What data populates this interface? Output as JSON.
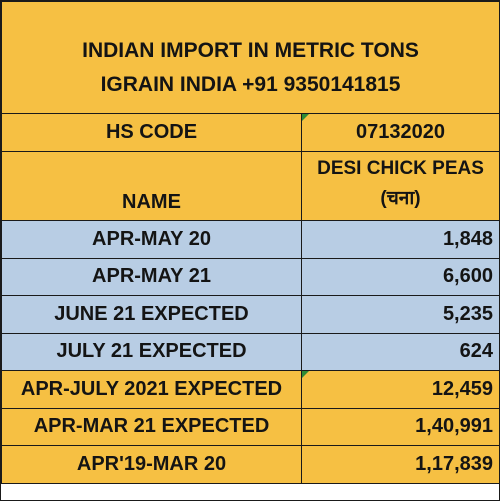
{
  "header": {
    "line1": "INDIAN IMPORT IN METRIC TONS",
    "line2": "IGRAIN INDIA +91 9350141815"
  },
  "hs_code": {
    "label": "HS CODE",
    "value": "07132020"
  },
  "name_row": {
    "label": "NAME",
    "product_line1": "DESI CHICK PEAS",
    "product_line2": "(चना)"
  },
  "rows": [
    {
      "label": "APR-MAY 20",
      "value": "1,848",
      "color": "#b8cde4"
    },
    {
      "label": "APR-MAY 21",
      "value": "6,600",
      "color": "#b8cde4"
    },
    {
      "label": "JUNE 21 EXPECTED",
      "value": "5,235",
      "color": "#b8cde4"
    },
    {
      "label": "JULY 21 EXPECTED",
      "value": "624",
      "color": "#b8cde4"
    },
    {
      "label": "APR-JULY 2021 EXPECTED",
      "value": "12,459",
      "color": "#f6c043"
    },
    {
      "label": "APR-MAR 21 EXPECTED",
      "value": "1,40,991",
      "color": "#f6c043"
    },
    {
      "label": "APR'19-MAR 20",
      "value": "1,17,839",
      "color": "#f6c043"
    }
  ]
}
